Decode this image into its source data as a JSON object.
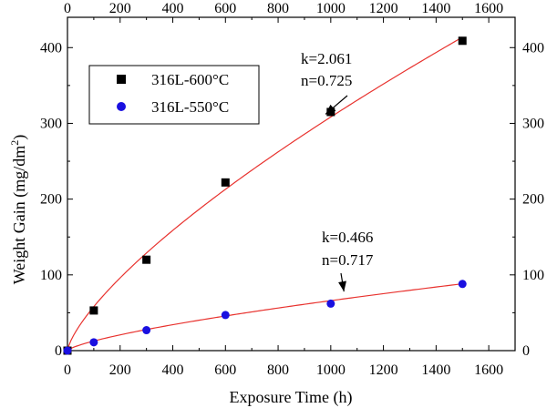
{
  "chart_data": {
    "type": "scatter",
    "xlabel": "Exposure Time (h)",
    "ylabel_main": "Weight Gain (mg/dm",
    "ylabel_sup": "2",
    "ylabel_close": ")",
    "xlim": [
      0,
      1700
    ],
    "ylim": [
      0,
      440
    ],
    "xticks": [
      0,
      200,
      400,
      600,
      800,
      1000,
      1200,
      1400,
      1600
    ],
    "yticks": [
      0,
      100,
      200,
      300,
      400
    ],
    "grid": false,
    "legend_position": "top-left",
    "series": [
      {
        "name": "316L-600°C",
        "marker": "square",
        "marker_color": "#000000",
        "fit_color": "#e8322e",
        "fit_k": 2.061,
        "fit_n": 0.725,
        "x": [
          0,
          100,
          300,
          600,
          1000,
          1500
        ],
        "y": [
          0,
          53,
          120,
          222,
          315,
          409
        ]
      },
      {
        "name": "316L-550°C",
        "marker": "circle",
        "marker_color": "#1a10e0",
        "fit_color": "#e8322e",
        "fit_k": 0.466,
        "fit_n": 0.717,
        "x": [
          0,
          100,
          300,
          600,
          1000,
          1500
        ],
        "y": [
          0,
          11,
          27,
          47,
          62,
          88
        ]
      }
    ],
    "annotations": [
      {
        "line1": "k=2.061",
        "line2": "n=0.725",
        "arrow_to_x": 980,
        "arrow_to_y": 312
      },
      {
        "line1": "k=0.466",
        "line2": "n=0.717",
        "arrow_to_x": 1050,
        "arrow_to_y": 78
      }
    ]
  }
}
